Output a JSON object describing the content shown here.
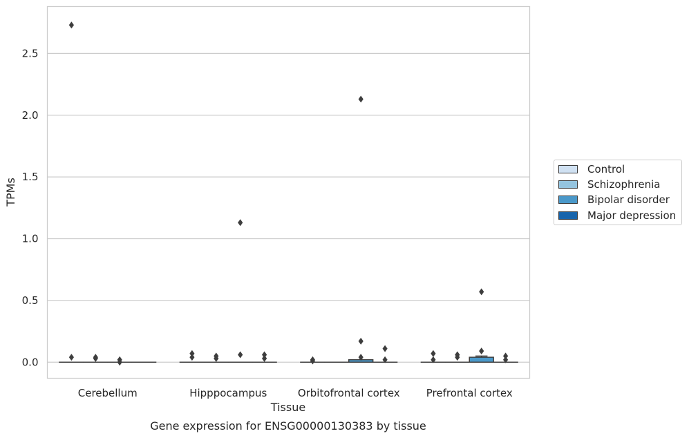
{
  "chart_data": {
    "type": "box",
    "title": "Gene expression for ENSG00000130383 by tissue",
    "xlabel": "Tissue",
    "ylabel": "TPMs",
    "ylim": [
      -0.13,
      2.88
    ],
    "yticks": [
      "0.0",
      "0.5",
      "1.0",
      "1.5",
      "2.0",
      "2.5"
    ],
    "ytick_values": [
      0.0,
      0.5,
      1.0,
      1.5,
      2.0,
      2.5
    ],
    "grid": "horizontal",
    "legend_position": "right",
    "categories": [
      "Cerebellum",
      "Hipppocampus",
      "Orbitofrontal cortex",
      "Prefrontal cortex"
    ],
    "series": [
      {
        "name": "Control",
        "color": "#d0e1f2",
        "boxes": [
          {
            "q1": 0.0,
            "median": 0.0,
            "q3": 0.0,
            "whisker_low": 0.0,
            "whisker_high": 0.0,
            "outliers": [
              0.04,
              2.73
            ]
          },
          {
            "q1": 0.0,
            "median": 0.0,
            "q3": 0.0,
            "whisker_low": 0.0,
            "whisker_high": 0.0,
            "outliers": [
              0.04,
              0.07
            ]
          },
          {
            "q1": 0.0,
            "median": 0.0,
            "q3": 0.0,
            "whisker_low": 0.0,
            "whisker_high": 0.0,
            "outliers": [
              0.01,
              0.02
            ]
          },
          {
            "q1": 0.0,
            "median": 0.0,
            "q3": 0.0,
            "whisker_low": 0.0,
            "whisker_high": 0.0,
            "outliers": [
              0.02,
              0.07
            ]
          }
        ]
      },
      {
        "name": "Schizophrenia",
        "color": "#94c4df",
        "boxes": [
          {
            "q1": 0.0,
            "median": 0.0,
            "q3": 0.0,
            "whisker_low": 0.0,
            "whisker_high": 0.0,
            "outliers": [
              0.03,
              0.04
            ]
          },
          {
            "q1": 0.0,
            "median": 0.0,
            "q3": 0.0,
            "whisker_low": 0.0,
            "whisker_high": 0.0,
            "outliers": [
              0.03,
              0.05
            ]
          },
          {
            "q1": 0.0,
            "median": 0.0,
            "q3": 0.0,
            "whisker_low": 0.0,
            "whisker_high": 0.0,
            "outliers": []
          },
          {
            "q1": 0.0,
            "median": 0.0,
            "q3": 0.0,
            "whisker_low": 0.0,
            "whisker_high": 0.0,
            "outliers": [
              0.04,
              0.06
            ]
          }
        ]
      },
      {
        "name": "Bipolar disorder",
        "color": "#4a98c9",
        "boxes": [
          {
            "q1": 0.0,
            "median": 0.0,
            "q3": 0.0,
            "whisker_low": 0.0,
            "whisker_high": 0.0,
            "outliers": [
              0.02,
              0.0
            ]
          },
          {
            "q1": 0.0,
            "median": 0.0,
            "q3": 0.0,
            "whisker_low": 0.0,
            "whisker_high": 0.0,
            "outliers": [
              0.06,
              1.13
            ]
          },
          {
            "q1": 0.0,
            "median": 0.0,
            "q3": 0.02,
            "whisker_low": 0.0,
            "whisker_high": 0.02,
            "outliers": [
              0.04,
              0.17,
              2.13
            ]
          },
          {
            "q1": 0.0,
            "median": 0.0,
            "q3": 0.04,
            "whisker_low": 0.0,
            "whisker_high": 0.05,
            "outliers": [
              0.09,
              0.57
            ]
          }
        ]
      },
      {
        "name": "Major depression",
        "color": "#1764ab",
        "boxes": [
          {
            "q1": 0.0,
            "median": 0.0,
            "q3": 0.0,
            "whisker_low": 0.0,
            "whisker_high": 0.0,
            "outliers": []
          },
          {
            "q1": 0.0,
            "median": 0.0,
            "q3": 0.0,
            "whisker_low": 0.0,
            "whisker_high": 0.0,
            "outliers": [
              0.03,
              0.06
            ]
          },
          {
            "q1": 0.0,
            "median": 0.0,
            "q3": 0.0,
            "whisker_low": 0.0,
            "whisker_high": 0.0,
            "outliers": [
              0.02,
              0.11
            ]
          },
          {
            "q1": 0.0,
            "median": 0.0,
            "q3": 0.0,
            "whisker_low": 0.0,
            "whisker_high": 0.0,
            "outliers": [
              0.02,
              0.05
            ]
          }
        ]
      }
    ]
  }
}
